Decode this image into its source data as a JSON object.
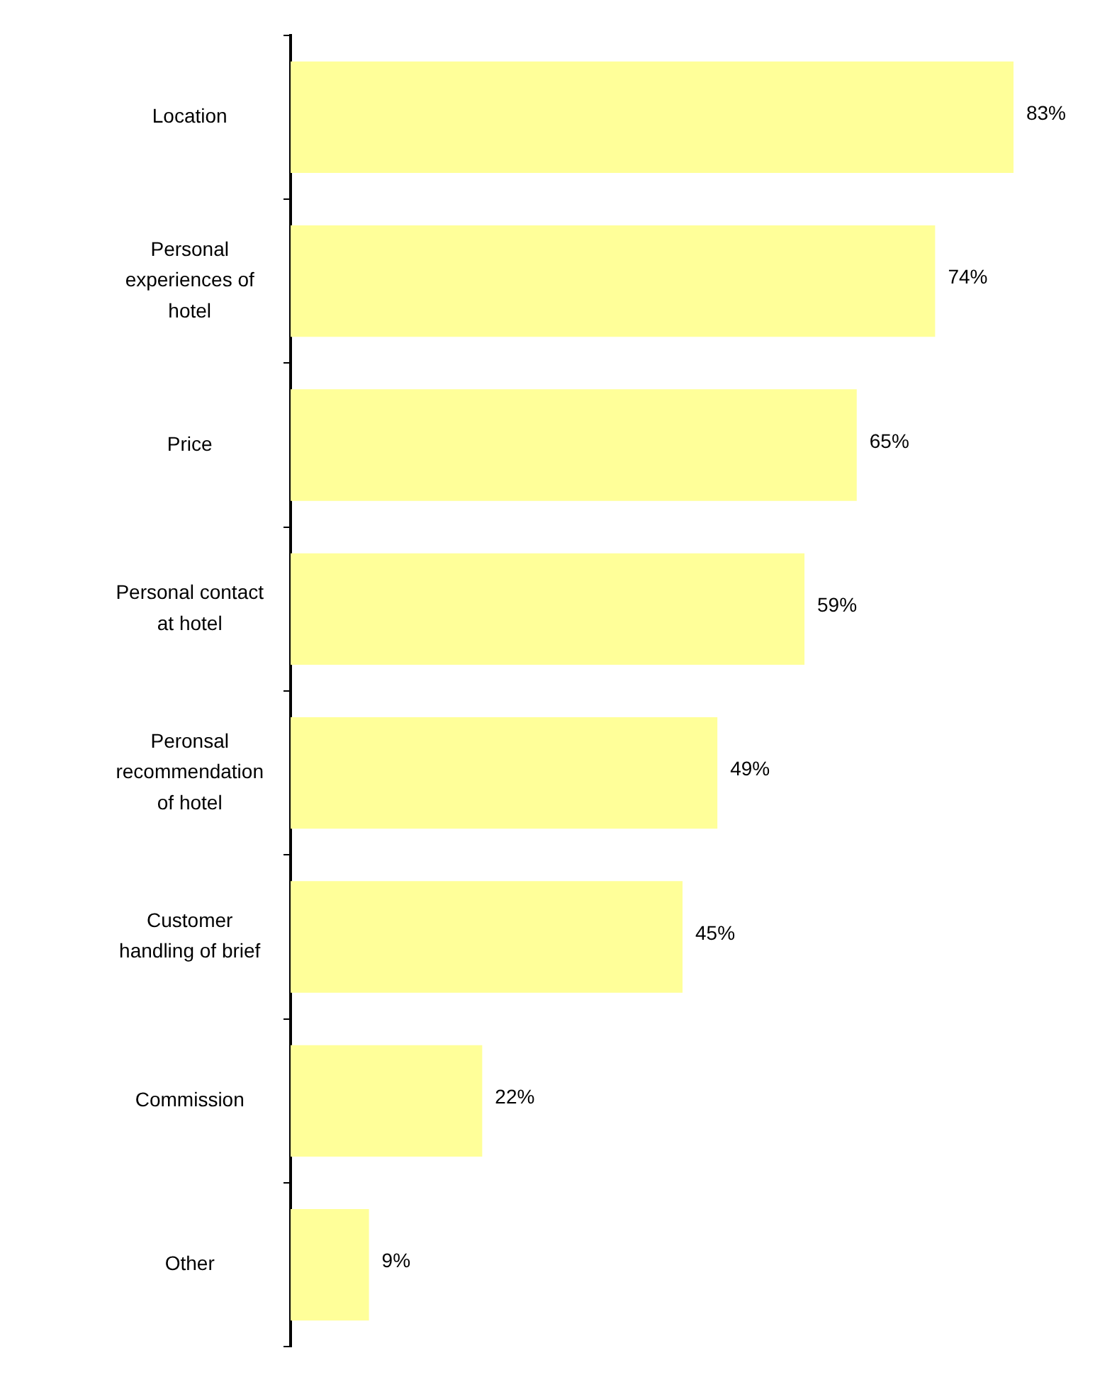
{
  "chart_data": {
    "type": "bar",
    "orientation": "horizontal",
    "categories": [
      "Location",
      "Personal experiences of hotel",
      "Price",
      "Personal contact at hotel",
      "Peronsal recommendation of hotel",
      "Customer handling of brief",
      "Commission",
      "Other"
    ],
    "values": [
      83,
      74,
      65,
      59,
      49,
      45,
      22,
      9
    ],
    "value_labels": [
      "83%",
      "74%",
      "65%",
      "59%",
      "49%",
      "45%",
      "22%",
      "9%"
    ],
    "color": "#ffff99",
    "tick_labels": "y"
  }
}
